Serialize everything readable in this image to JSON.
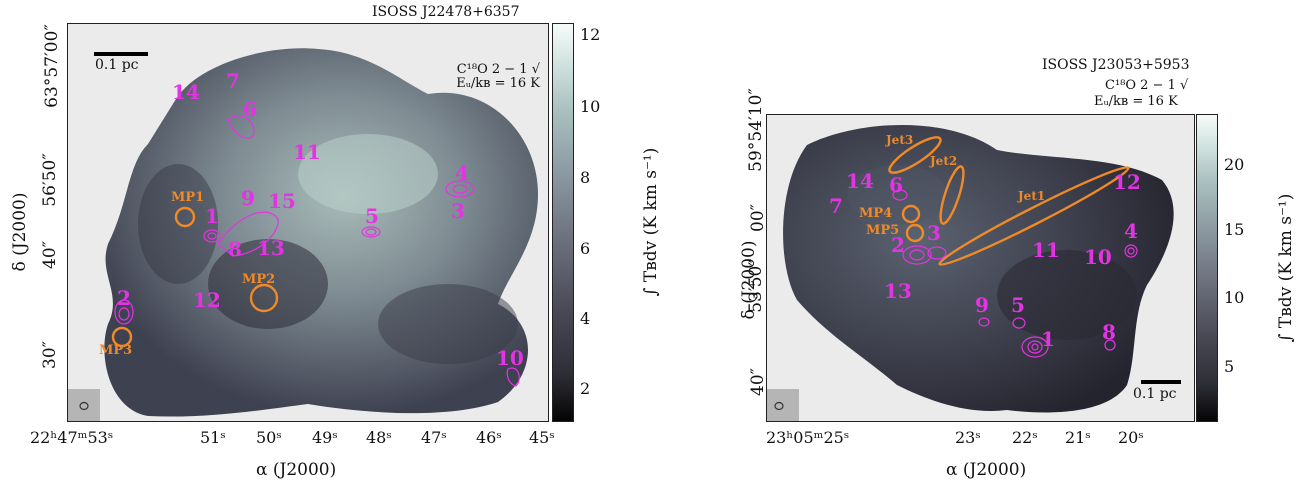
{
  "left": {
    "source": "ISOSS J22478+6357",
    "line": "C¹⁸O 2 − 1 √",
    "energy": "Eᵤ/kʙ = 16 K",
    "scale": "0.1 pc",
    "dec_ticks": [
      "63°57′00″",
      "56′50″",
      "40″",
      "30″"
    ],
    "ra_ticks": [
      "22ʰ47ᵐ53ˢ",
      "51ˢ",
      "50ˢ",
      "49ˢ",
      "48ˢ",
      "47ˢ",
      "46ˢ",
      "45ˢ"
    ],
    "ylabel": "δ (J2000)",
    "xlabel": "α (J2000)",
    "colorbar_ticks": [
      "12",
      "10",
      "8",
      "6",
      "4",
      "2"
    ],
    "colorbar_label": "∫ Tʙdv (K km s⁻¹)",
    "cores": [
      "1",
      "2",
      "3",
      "4",
      "5",
      "6",
      "7",
      "8",
      "9",
      "10",
      "11",
      "12",
      "13",
      "14",
      "15"
    ],
    "mp": [
      "MP1",
      "MP2",
      "MP3"
    ]
  },
  "right": {
    "source": "ISOSS J23053+5953",
    "line": "C¹⁸O 2 − 1 √",
    "energy": "Eᵤ/kʙ = 16 K",
    "scale": "0.1 pc",
    "dec_ticks": [
      "59°54′10″",
      "00″",
      "53′50″",
      "40″"
    ],
    "ra_ticks": [
      "23ʰ05ᵐ25ˢ",
      "23ˢ",
      "22ˢ",
      "21ˢ",
      "20ˢ"
    ],
    "ylabel": "δ (J2000)",
    "xlabel": "α (J2000)",
    "colorbar_ticks": [
      "20",
      "15",
      "10",
      "5"
    ],
    "colorbar_label": "∫ Tʙdv (K km s⁻¹)",
    "cores": [
      "1",
      "2",
      "3",
      "4",
      "5",
      "6",
      "7",
      "8",
      "9",
      "10",
      "11",
      "12",
      "13",
      "14"
    ],
    "mp": [
      "MP4",
      "MP5"
    ],
    "jets": [
      "Jet1",
      "Jet2",
      "Jet3"
    ]
  },
  "colors": {
    "cores": "#e433e4",
    "outflow": "#f08a28",
    "background": "#ebebeb"
  }
}
